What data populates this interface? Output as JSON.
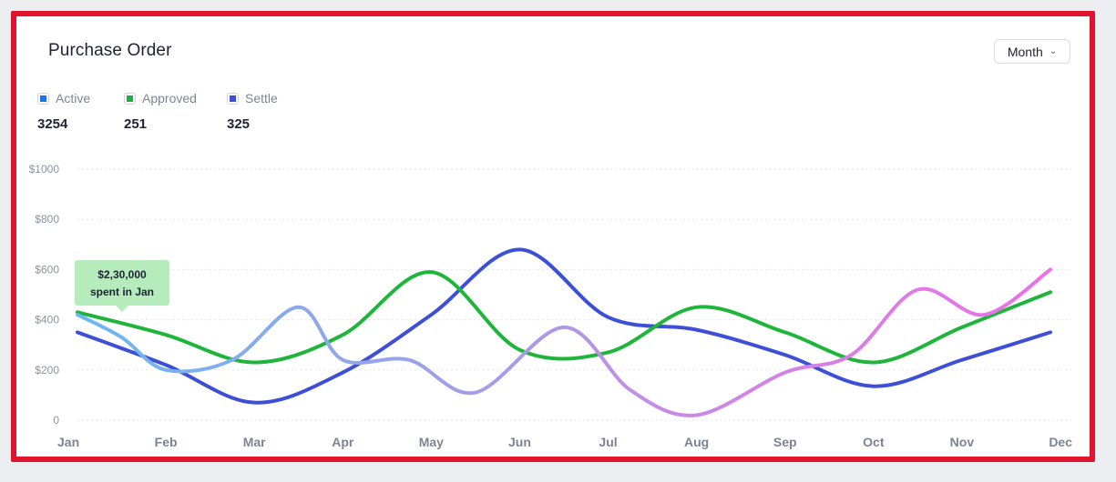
{
  "title": "Purchase Order",
  "period_select": {
    "label": "Month"
  },
  "legend": [
    {
      "name": "Active",
      "value": "3254",
      "color": "#1a73e8"
    },
    {
      "name": "Approved",
      "value": "251",
      "color": "#1bb33a"
    },
    {
      "name": "Settle",
      "value": "325",
      "color": "#3d4fd6"
    }
  ],
  "tooltip": {
    "line1": "$2,30,000",
    "line2": "spent in Jan",
    "color": "#b6ebbc"
  },
  "colors": {
    "frame": "#e0142e",
    "blue_series": "#3d4fd6",
    "green_series": "#1fb53b",
    "multicolor_start": "#6cb8f2",
    "multicolor_mid": "#a89be6",
    "multicolor_end": "#ee6fe6"
  },
  "chart_data": {
    "type": "line",
    "categories": [
      "Jan",
      "Feb",
      "Mar",
      "Apr",
      "May",
      "Jun",
      "Jul",
      "Aug",
      "Sep",
      "Oct",
      "Nov",
      "Dec"
    ],
    "y_ticks": [
      "0",
      "$200",
      "$400",
      "$600",
      "$800",
      "$1000"
    ],
    "ylim": [
      0,
      1000
    ],
    "grid": true,
    "series": [
      {
        "color": "#3d4fd6",
        "x": [
          0,
          1,
          2,
          3,
          4,
          5,
          6,
          7,
          8,
          9,
          10,
          11
        ],
        "values": [
          350,
          220,
          70,
          190,
          420,
          680,
          410,
          360,
          260,
          135,
          240,
          350
        ]
      },
      {
        "color": "#1fb53b",
        "x": [
          0,
          1,
          2,
          3,
          4,
          5,
          6,
          7,
          8,
          9,
          10,
          11
        ],
        "values": [
          430,
          340,
          230,
          340,
          590,
          280,
          270,
          450,
          350,
          230,
          370,
          510
        ]
      },
      {
        "gradient": true,
        "x": [
          0,
          0.5,
          1,
          1.75,
          2.5,
          3,
          3.75,
          4.5,
          5.5,
          6.25,
          7,
          8,
          8.75,
          9.5,
          10.25,
          11
        ],
        "values": [
          420,
          330,
          200,
          240,
          450,
          240,
          240,
          110,
          370,
          120,
          20,
          190,
          260,
          520,
          420,
          600
        ]
      }
    ]
  }
}
